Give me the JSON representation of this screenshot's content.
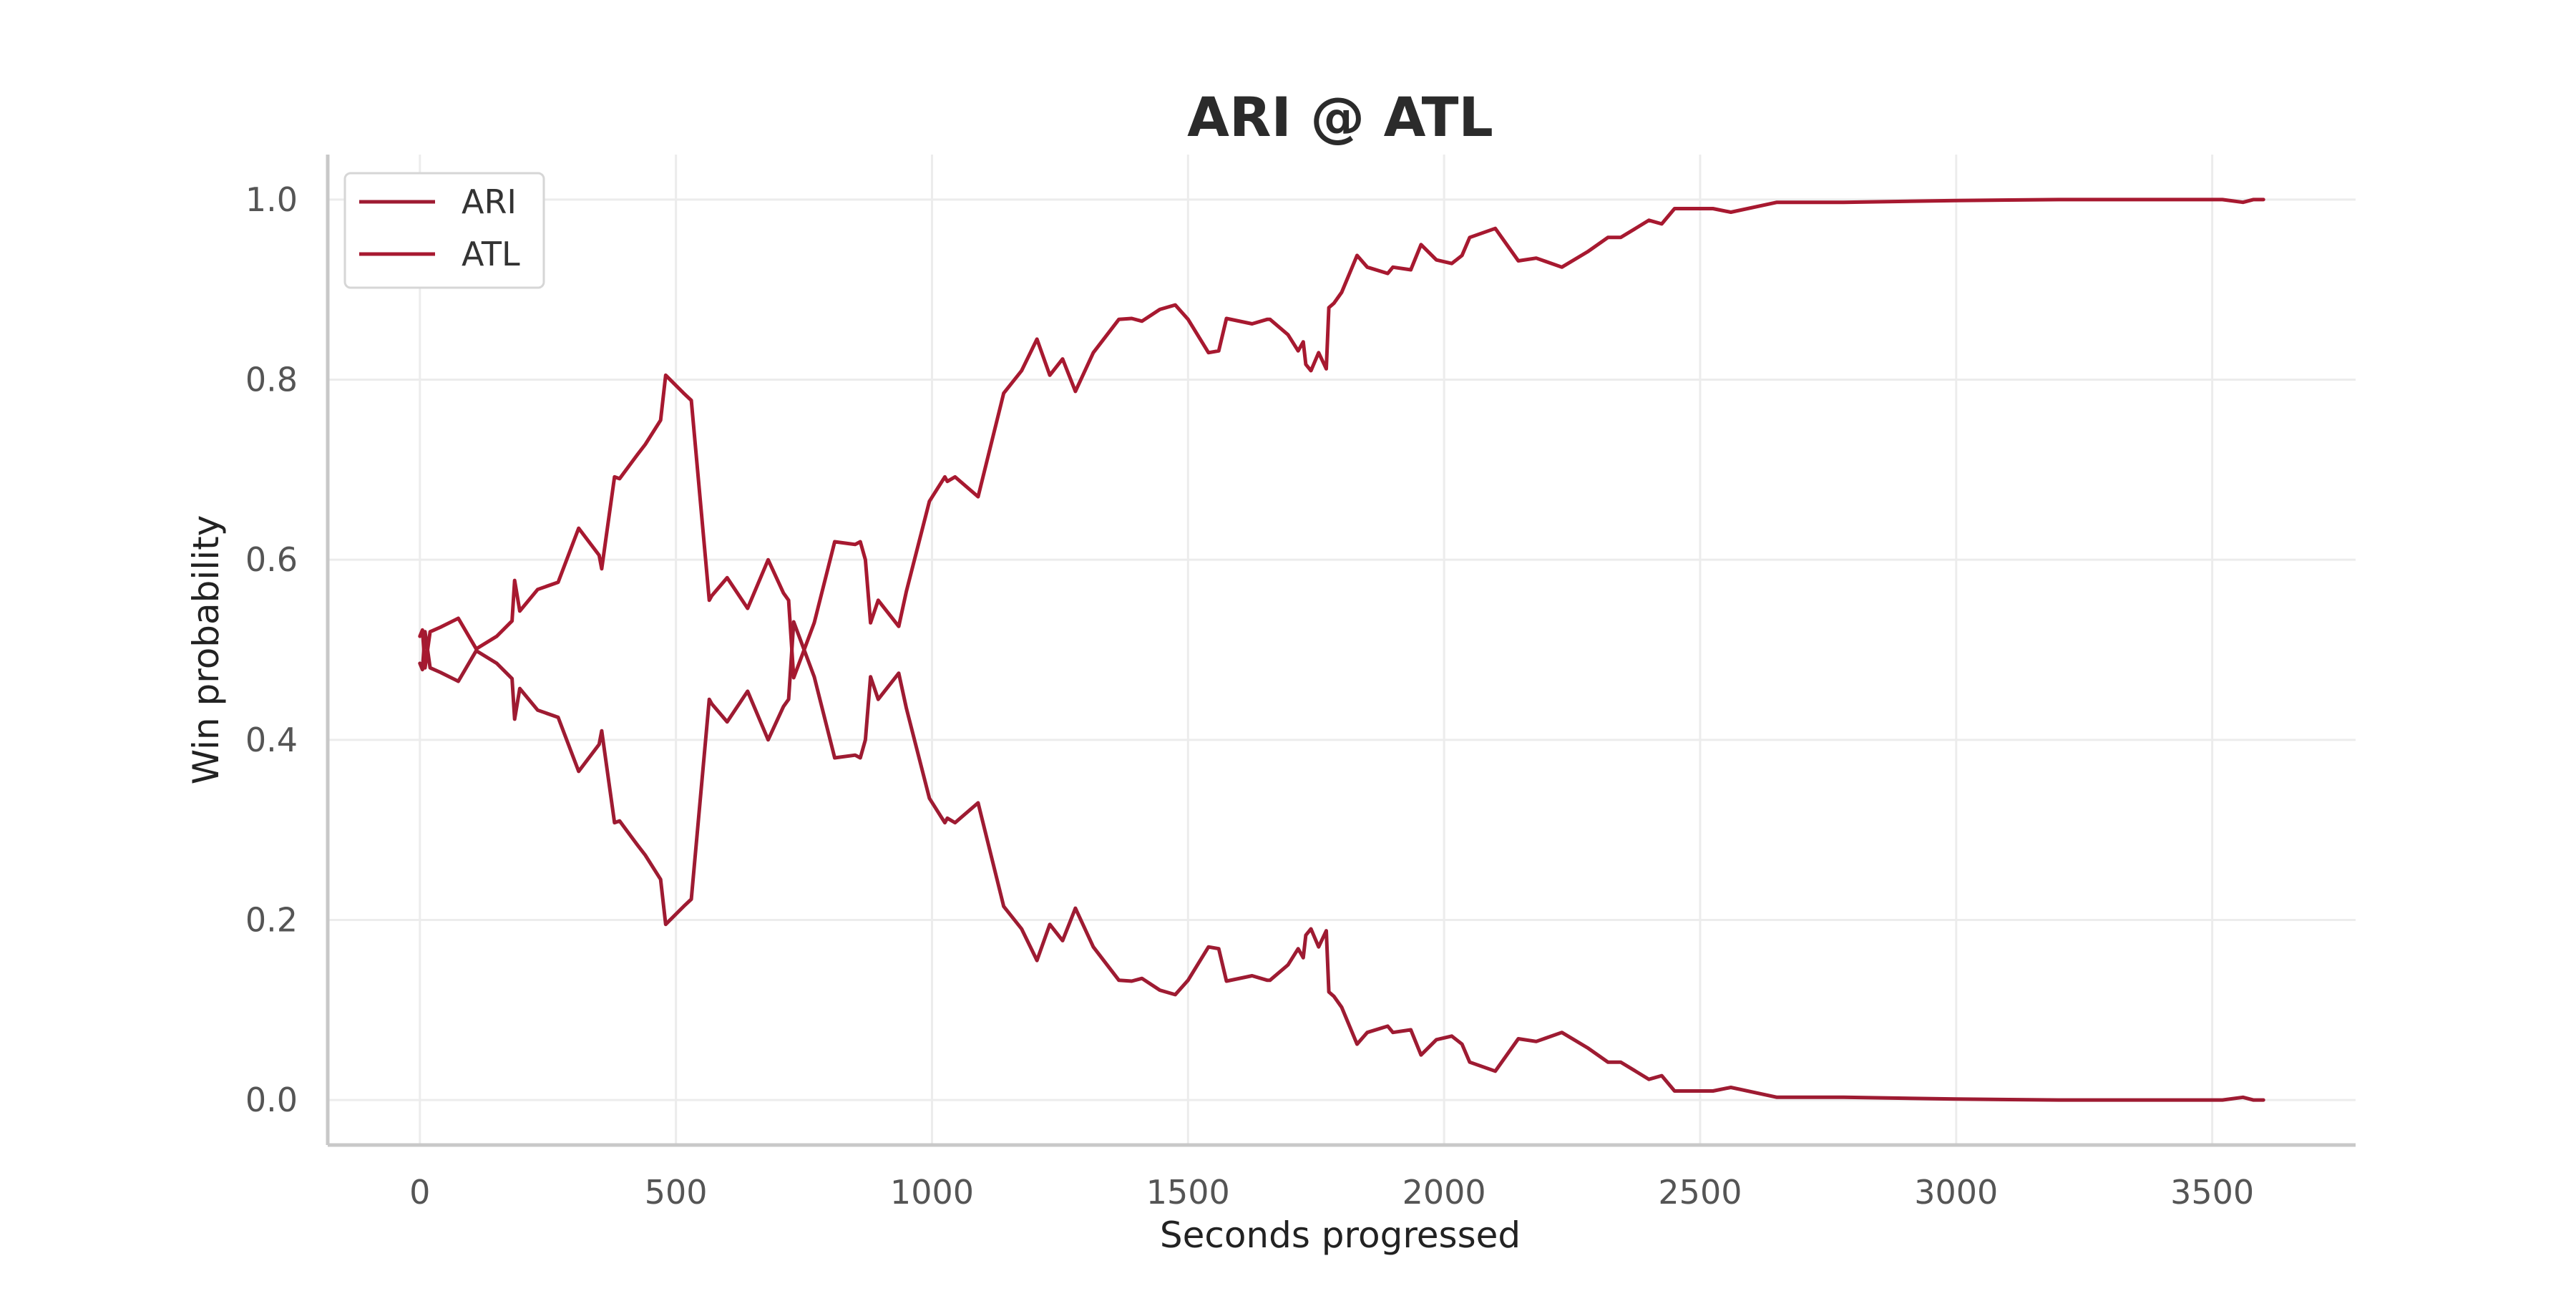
{
  "chart_data": {
    "type": "line",
    "title": "ARI @ ATL",
    "xlabel": "Seconds progressed",
    "ylabel": "Win probability",
    "xlim": [
      -180,
      3780
    ],
    "ylim": [
      -0.05,
      1.05
    ],
    "xticks": [
      0,
      500,
      1000,
      1500,
      2000,
      2500,
      3000,
      3500
    ],
    "yticks": [
      0.0,
      0.2,
      0.4,
      0.6,
      0.8,
      1.0
    ],
    "xtick_labels": [
      "0",
      "500",
      "1000",
      "1500",
      "2000",
      "2500",
      "3000",
      "3500"
    ],
    "ytick_labels": [
      "0.0",
      "0.2",
      "0.4",
      "0.6",
      "0.8",
      "1.0"
    ],
    "grid": true,
    "legend_position": "top-left",
    "colors": {
      "ARI": "#9e1b32",
      "ATL": "#a71930",
      "grid": "#ececec",
      "spine": "#c8c8c8"
    },
    "x": [
      0,
      5,
      10,
      20,
      40,
      75,
      110,
      150,
      180,
      185,
      195,
      230,
      270,
      300,
      310,
      350,
      355,
      380,
      390,
      425,
      440,
      470,
      480,
      515,
      530,
      565,
      570,
      600,
      640,
      680,
      710,
      720,
      730,
      770,
      810,
      850,
      860,
      870,
      880,
      895,
      935,
      950,
      995,
      1025,
      1030,
      1045,
      1090,
      1140,
      1175,
      1205,
      1230,
      1255,
      1280,
      1315,
      1365,
      1390,
      1410,
      1445,
      1475,
      1500,
      1540,
      1560,
      1575,
      1625,
      1655,
      1660,
      1695,
      1715,
      1725,
      1730,
      1740,
      1755,
      1770,
      1775,
      1785,
      1800,
      1830,
      1850,
      1890,
      1900,
      1935,
      1955,
      1985,
      2015,
      2035,
      2050,
      2100,
      2145,
      2180,
      2230,
      2280,
      2320,
      2345,
      2400,
      2425,
      2450,
      2525,
      2560,
      2650,
      2780,
      3000,
      3200,
      3400,
      3520,
      3560,
      3580,
      3600
    ],
    "series": [
      {
        "name": "ARI",
        "values": [
          0.485,
          0.478,
          0.52,
          0.48,
          0.475,
          0.465,
          0.499,
          0.485,
          0.468,
          0.423,
          0.457,
          0.433,
          0.425,
          0.38,
          0.365,
          0.395,
          0.41,
          0.308,
          0.31,
          0.283,
          0.272,
          0.245,
          0.195,
          0.215,
          0.223,
          0.445,
          0.44,
          0.42,
          0.454,
          0.4,
          0.437,
          0.445,
          0.531,
          0.47,
          0.38,
          0.383,
          0.38,
          0.4,
          0.47,
          0.445,
          0.474,
          0.435,
          0.335,
          0.308,
          0.313,
          0.308,
          0.33,
          0.215,
          0.19,
          0.155,
          0.195,
          0.177,
          0.213,
          0.17,
          0.133,
          0.132,
          0.135,
          0.122,
          0.117,
          0.133,
          0.17,
          0.168,
          0.132,
          0.138,
          0.133,
          0.133,
          0.15,
          0.168,
          0.158,
          0.183,
          0.19,
          0.17,
          0.188,
          0.12,
          0.115,
          0.103,
          0.062,
          0.075,
          0.082,
          0.075,
          0.078,
          0.05,
          0.067,
          0.071,
          0.062,
          0.042,
          0.032,
          0.068,
          0.065,
          0.075,
          0.058,
          0.042,
          0.042,
          0.023,
          0.027,
          0.01,
          0.01,
          0.014,
          0.003,
          0.003,
          0.001,
          0.0,
          0.0,
          0.0,
          0.003,
          0.0,
          0.0
        ]
      },
      {
        "name": "ATL",
        "values": [
          0.515,
          0.522,
          0.48,
          0.52,
          0.525,
          0.535,
          0.501,
          0.515,
          0.532,
          0.577,
          0.543,
          0.567,
          0.575,
          0.62,
          0.635,
          0.605,
          0.59,
          0.692,
          0.69,
          0.717,
          0.728,
          0.755,
          0.805,
          0.785,
          0.777,
          0.555,
          0.56,
          0.58,
          0.546,
          0.6,
          0.563,
          0.555,
          0.469,
          0.53,
          0.62,
          0.617,
          0.62,
          0.6,
          0.53,
          0.555,
          0.526,
          0.565,
          0.665,
          0.692,
          0.687,
          0.692,
          0.67,
          0.785,
          0.81,
          0.845,
          0.805,
          0.823,
          0.787,
          0.83,
          0.867,
          0.868,
          0.865,
          0.878,
          0.883,
          0.867,
          0.83,
          0.832,
          0.868,
          0.862,
          0.867,
          0.867,
          0.85,
          0.832,
          0.842,
          0.817,
          0.81,
          0.83,
          0.812,
          0.88,
          0.885,
          0.897,
          0.938,
          0.925,
          0.918,
          0.925,
          0.922,
          0.95,
          0.933,
          0.929,
          0.938,
          0.958,
          0.968,
          0.932,
          0.935,
          0.925,
          0.942,
          0.958,
          0.958,
          0.977,
          0.973,
          0.99,
          0.99,
          0.986,
          0.997,
          0.997,
          0.999,
          1.0,
          1.0,
          1.0,
          0.997,
          1.0,
          1.0
        ]
      }
    ]
  }
}
